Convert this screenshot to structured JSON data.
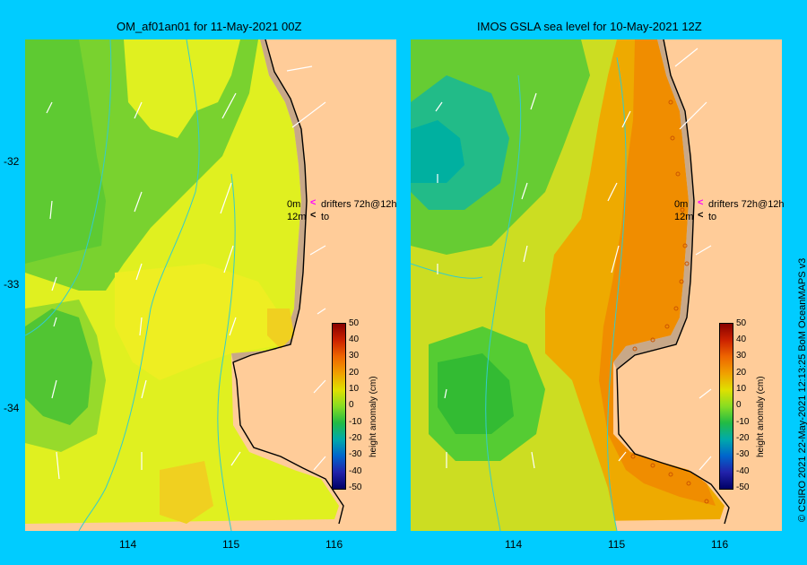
{
  "panels": [
    {
      "title": "OM_af01an01  for 11-May-2021 00Z"
    },
    {
      "title": "IMOS GSLA sea level  for 10-May-2021 12Z"
    }
  ],
  "axes": {
    "lat_labels": [
      "-32",
      "-33",
      "-34"
    ],
    "lon_labels": [
      "114",
      "115",
      "116"
    ]
  },
  "legend": {
    "depth_top": "0m",
    "depth_bottom": "12m",
    "drifters_label": "drifters 72h@12h",
    "to_label": "to",
    "drifter_color": "#ff00ff"
  },
  "colorbar": {
    "title": "height anomaly (cm)",
    "ticks": [
      "50",
      "40",
      "30",
      "20",
      "10",
      "0",
      "-10",
      "-20",
      "-30",
      "-40",
      "-50"
    ]
  },
  "credit": "© CSIRO 2021   22-May-2021 12:13:25 BoM OceanMAPS v3",
  "colors": {
    "background": "#00ccff",
    "land": "#ffcc99",
    "coast_shelf": "#c8a888",
    "current_line": "#33cccc"
  }
}
